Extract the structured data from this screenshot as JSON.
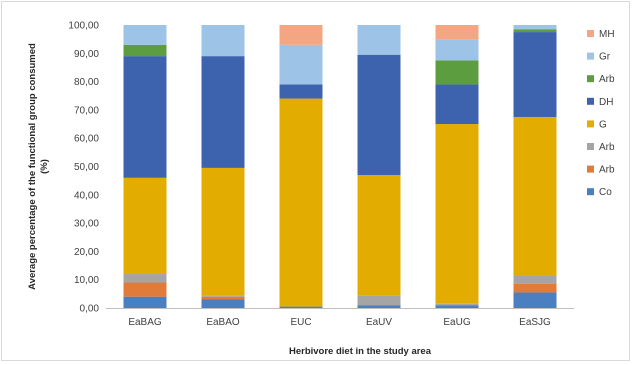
{
  "chart_data": {
    "type": "bar",
    "stacked": true,
    "title": "",
    "xlabel": "Herbivore diet in the study area",
    "ylabel": "Average percentage of the functional group consumed (%)",
    "ylabel_lines": [
      "Average percentage of the functional group consumed",
      "(%)"
    ],
    "ylim": [
      0,
      100
    ],
    "yticks": [
      "0,00",
      "10,00",
      "20,00",
      "30,00",
      "40,00",
      "50,00",
      "60,00",
      "70,00",
      "80,00",
      "90,00",
      "100,00"
    ],
    "grid": false,
    "legend_position": "right",
    "categories": [
      "EaBAG",
      "EaBAO",
      "EUC",
      "EaUV",
      "EaUG",
      "EaSJG"
    ],
    "series": [
      {
        "name": "Co",
        "color": "#4a7fc1",
        "values": [
          4.0,
          3.0,
          0.5,
          1.0,
          1.0,
          5.5
        ]
      },
      {
        "name": "Arb",
        "color": "#e07b39",
        "values": [
          5.0,
          1.0,
          0.0,
          0.0,
          0.0,
          3.0
        ]
      },
      {
        "name": "Arb",
        "color": "#a5a5a5",
        "values": [
          3.0,
          0.5,
          0.0,
          3.5,
          0.5,
          3.0
        ]
      },
      {
        "name": "G",
        "color": "#e3ac00",
        "values": [
          34.0,
          45.0,
          73.5,
          42.5,
          63.5,
          56.0
        ]
      },
      {
        "name": "DH",
        "color": "#3e63ae",
        "values": [
          43.0,
          39.5,
          5.0,
          42.5,
          14.0,
          30.0
        ]
      },
      {
        "name": "Arb",
        "color": "#5c9e3f",
        "values": [
          4.0,
          0.0,
          0.0,
          0.0,
          8.5,
          1.0
        ]
      },
      {
        "name": "Gr",
        "color": "#9dc3e6",
        "values": [
          7.0,
          11.0,
          14.0,
          10.5,
          7.5,
          1.5
        ]
      },
      {
        "name": "MH",
        "color": "#f4a582",
        "values": [
          0.0,
          0.0,
          7.0,
          0.0,
          5.0,
          0.0
        ]
      }
    ]
  }
}
